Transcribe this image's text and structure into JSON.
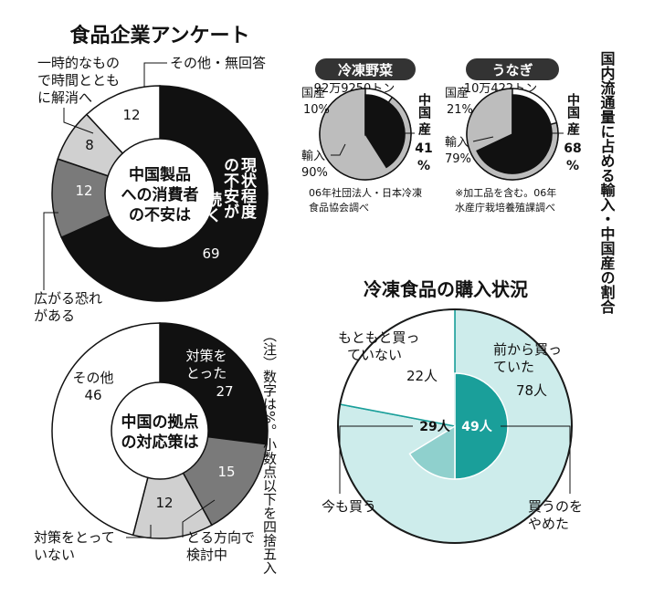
{
  "chart_data": [
    {
      "type": "pie",
      "title": "食品企業アンケート",
      "center_label": "中国製品への消費者の不安は",
      "categories": [
        "現状程度の不安が続く",
        "広がる恐れがある",
        "一時的なもので時間とともに解消へ",
        "その他・無回答"
      ],
      "values": [
        69,
        12,
        8,
        12
      ],
      "colors": [
        "#111111",
        "#7a7a7a",
        "#d0d0d0",
        "#ffffff"
      ]
    },
    {
      "type": "pie",
      "center_label": "中国の拠点の対応策は",
      "categories": [
        "対策をとった",
        "とる方向で検討中",
        "対策をとっていない",
        "その他"
      ],
      "values": [
        27,
        15,
        12,
        46
      ],
      "colors": [
        "#111111",
        "#7a7a7a",
        "#d0d0d0",
        "#ffffff"
      ]
    },
    {
      "type": "pie",
      "title": "冷凍野菜",
      "total_label": "92万9250トン",
      "categories": [
        "中国産",
        "輸入",
        "国産"
      ],
      "values": [
        41,
        90,
        10
      ],
      "labels": [
        "中国産 41%",
        "輸入 90%",
        "国産 10%"
      ],
      "source": "06年社団法人・日本冷凍食品協会調べ"
    },
    {
      "type": "pie",
      "title": "うなぎ",
      "total_label": "10万422トン",
      "categories": [
        "中国産",
        "輸入",
        "国産"
      ],
      "values": [
        68,
        79,
        21
      ],
      "labels": [
        "中国産 68%",
        "輸入 79%",
        "国産 21%"
      ],
      "source": "※加工品を含む。06年水産庁栽培養殖課調べ"
    },
    {
      "type": "pie",
      "title": "冷凍食品の購入状況",
      "categories": [
        "前から買っていた",
        "もともと買っていない",
        "今も買う",
        "買うのをやめた"
      ],
      "values": [
        78,
        22,
        29,
        49
      ],
      "value_labels": [
        "78人",
        "22人",
        "29人",
        "49人"
      ]
    }
  ],
  "header": {
    "imports_note": "国内流通量に占める輸入・中国産の割合",
    "footnote": "（注）数字は%。小数点以下を四捨五入"
  },
  "labels": {
    "c1_cur_a": "現状程度",
    "c1_cur_b": "の不安が",
    "c1_cur_c": "続く",
    "c1_spread_a": "広がる恐れ",
    "c1_spread_b": "がある",
    "c1_temp_a": "一時的なもの",
    "c1_temp_b": "で時間ととも",
    "c1_temp_c": "に解消へ",
    "c1_other": "その他・無回答",
    "c1_center_a": "中国製品",
    "c1_center_b": "への消費者",
    "c1_center_c": "の不安は",
    "c2_done_a": "対策を",
    "c2_done_b": "とった",
    "c2_plan_a": "とる方向で",
    "c2_plan_b": "検討中",
    "c2_none_a": "対策をとって",
    "c2_none_b": "いない",
    "c2_other": "その他",
    "c2_center_a": "中国の拠点",
    "c2_center_b": "の対応策は",
    "fv_domestic_a": "国産",
    "fv_domestic_b": "10%",
    "fv_import_a": "輸入",
    "fv_import_b": "90%",
    "fv_china_a": "中国",
    "fv_china_b": "産",
    "fv_china_c": "41",
    "fv_china_d": "%",
    "fv_src_a": "06年社団法人・日本冷凍",
    "fv_src_b": "食品協会調べ",
    "ee_domestic_a": "国産",
    "ee_domestic_b": "21%",
    "ee_import_a": "輸入",
    "ee_import_b": "79%",
    "ee_china_a": "中国",
    "ee_china_b": "産",
    "ee_china_c": "68",
    "ee_china_d": "%",
    "ee_src_a": "※加工品を含む。06年",
    "ee_src_b": "水産庁栽培養殖課調べ",
    "pu_before_a": "前から買っ",
    "pu_before_b": "ていた",
    "pu_never_a": "もともと買っ",
    "pu_never_b": "ていない",
    "pu_still": "今も買う",
    "pu_stop_a": "買うのを",
    "pu_stop_b": "やめた"
  }
}
